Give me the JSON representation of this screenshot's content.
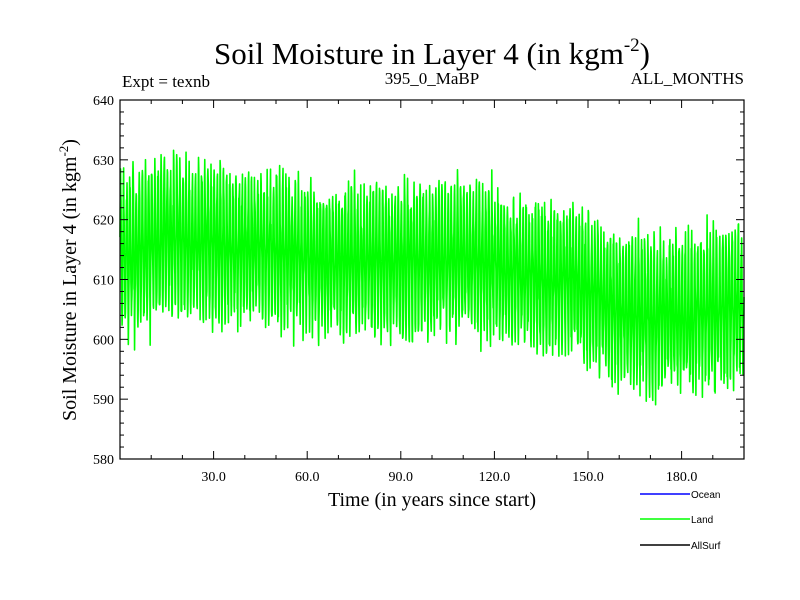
{
  "chart_data": {
    "type": "line",
    "title": "Soil Moisture in Layer 4 (in kgm",
    "title_sup": "-2",
    "title_close": ")",
    "subtitle_left": "Expt = texnb",
    "subtitle_center": "395_0_MaBP",
    "subtitle_right": "ALL_MONTHS",
    "xlabel": "Time (in years since start)",
    "ylabel": "Soil Moisture in Layer 4 (in kgm",
    "ylabel_sup": "-2",
    "ylabel_close": ")",
    "xlim": [
      0,
      200
    ],
    "ylim": [
      580,
      640
    ],
    "x_ticks": [
      30,
      60,
      90,
      120,
      150,
      180
    ],
    "x_tick_labels": [
      "30.0",
      "60.0",
      "90.0",
      "120.0",
      "150.0",
      "180.0"
    ],
    "y_ticks": [
      580,
      590,
      600,
      610,
      620,
      630,
      640
    ],
    "y_tick_labels": [
      "580",
      "590",
      "600",
      "610",
      "620",
      "630",
      "640"
    ],
    "legend": [
      {
        "name": "Ocean",
        "color": "#0000ff"
      },
      {
        "name": "Land",
        "color": "#00ff00"
      },
      {
        "name": "AllSurf",
        "color": "#000000"
      }
    ],
    "series": [
      {
        "name": "Land",
        "color": "#00ff00",
        "description": "monthly values oscillating around an annual cycle",
        "trend_x": [
          0,
          15,
          30,
          50,
          70,
          90,
          110,
          130,
          145,
          160,
          180,
          200
        ],
        "trend_y": [
          614,
          617,
          616,
          615,
          613,
          613,
          614,
          611,
          610,
          605,
          604,
          606
        ],
        "amplitude_x": [
          0,
          50,
          100,
          150,
          200
        ],
        "amplitude_y": [
          13,
          12,
          12,
          12,
          13
        ]
      }
    ]
  }
}
